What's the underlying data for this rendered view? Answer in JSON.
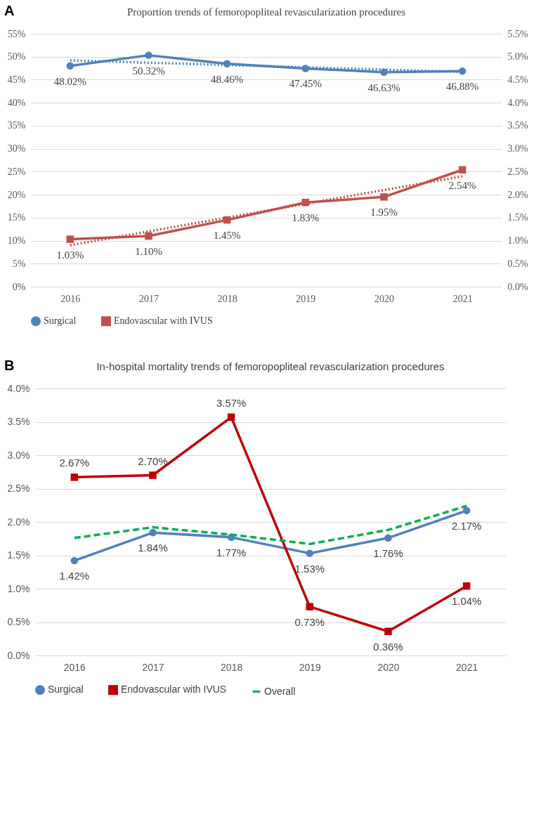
{
  "chart_data": [
    {
      "type": "line",
      "title": "Proportion trends of femoropopliteal revascularization procedures",
      "annotations": [
        "A"
      ],
      "categories": [
        "2016",
        "2017",
        "2018",
        "2019",
        "2020",
        "2021"
      ],
      "ylim": [
        0,
        55
      ],
      "yticks": [
        {
          "value": 0,
          "label": "0%"
        },
        {
          "value": 5,
          "label": "5%"
        },
        {
          "value": 10,
          "label": "10%"
        },
        {
          "value": 15,
          "label": "15%"
        },
        {
          "value": 20,
          "label": "20%"
        },
        {
          "value": 25,
          "label": "25%"
        },
        {
          "value": 30,
          "label": "30%"
        },
        {
          "value": 35,
          "label": "35%"
        },
        {
          "value": 40,
          "label": "40%"
        },
        {
          "value": 45,
          "label": "45%"
        },
        {
          "value": 50,
          "label": "50%"
        },
        {
          "value": 55,
          "label": "55%"
        }
      ],
      "y2lim": [
        0,
        5.5
      ],
      "y2ticks": [
        {
          "value": 0,
          "label": "0.0%"
        },
        {
          "value": 0.5,
          "label": "0.5%"
        },
        {
          "value": 1,
          "label": "1.0%"
        },
        {
          "value": 1.5,
          "label": "1.5%"
        },
        {
          "value": 2,
          "label": "2.0%"
        },
        {
          "value": 2.5,
          "label": "2.5%"
        },
        {
          "value": 3,
          "label": "3.0%"
        },
        {
          "value": 3.5,
          "label": "3.5%"
        },
        {
          "value": 4,
          "label": "4.0%"
        },
        {
          "value": 4.5,
          "label": "4.5%"
        },
        {
          "value": 5,
          "label": "5.0%"
        },
        {
          "value": 5.5,
          "label": "5.5%"
        }
      ],
      "grid": "y",
      "legend": "bottom",
      "series": [
        {
          "name": "Surgical",
          "color": "#4f81bd",
          "marker": "circle",
          "line_style": "solid",
          "values": [
            48.02,
            50.32,
            48.46,
            47.45,
            46.63,
            46.88
          ],
          "value_labels": [
            "48.02%",
            "50.32%",
            "48.46%",
            "47.45%",
            "46.63%",
            "46.88%"
          ]
        },
        {
          "name": "Endovascular with IVUS",
          "color": "#c0504d",
          "marker": "square",
          "line_style": "solid",
          "axis": "y2",
          "values": [
            1.03,
            1.1,
            1.45,
            1.83,
            1.95,
            2.54
          ],
          "value_labels": [
            "1.03%",
            "1.10%",
            "1.45%",
            "1.83%",
            "1.95%",
            "2.54%"
          ]
        },
        {
          "type": "line",
          "color": "#4f81bd",
          "marker": "none",
          "line_style": "dotted",
          "values": [
            49.2,
            48.7,
            48.2,
            47.7,
            47.2,
            46.7
          ]
        },
        {
          "type": "line",
          "color": "#c0504d",
          "marker": "none",
          "line_style": "dotted",
          "axis": "y2",
          "values": [
            0.9,
            1.2,
            1.5,
            1.8,
            2.1,
            2.4
          ]
        }
      ]
    },
    {
      "type": "line",
      "title": "In-hospital mortality trends of femoropopliteal revascularization procedures",
      "annotations": [
        "B"
      ],
      "categories": [
        "2016",
        "2017",
        "2018",
        "2019",
        "2020",
        "2021"
      ],
      "ylim": [
        0,
        4
      ],
      "yticks": [
        {
          "value": 0,
          "label": "0.0%"
        },
        {
          "value": 0.5,
          "label": "0.5%"
        },
        {
          "value": 1,
          "label": "1.0%"
        },
        {
          "value": 1.5,
          "label": "1.5%"
        },
        {
          "value": 2,
          "label": "2.0%"
        },
        {
          "value": 2.5,
          "label": "2.5%"
        },
        {
          "value": 3,
          "label": "3.0%"
        },
        {
          "value": 3.5,
          "label": "3.5%"
        },
        {
          "value": 4,
          "label": "4.0%"
        }
      ],
      "grid": "y",
      "legend": "bottom",
      "series": [
        {
          "name": "Surgical",
          "color": "#4f81bd",
          "marker": "circle",
          "line_style": "solid",
          "values": [
            1.42,
            1.84,
            1.77,
            1.53,
            1.76,
            2.17
          ],
          "value_labels": [
            "1.42%",
            "1.84%",
            "1.77%",
            "1.53%",
            "1.76%",
            "2.17%"
          ]
        },
        {
          "name": "Endovascular with IVUS",
          "color": "#c00000",
          "marker": "square",
          "line_style": "solid",
          "values": [
            2.67,
            2.7,
            3.57,
            0.73,
            0.36,
            1.04
          ],
          "value_labels": [
            "2.67%",
            "2.70%",
            "3.57%",
            "0.73%",
            "0.36%",
            "1.04%"
          ]
        },
        {
          "name": "Overall",
          "color": "#00b050",
          "marker": "none",
          "line_style": "dashed",
          "values": [
            1.76,
            1.92,
            1.81,
            1.67,
            1.88,
            2.24
          ]
        }
      ]
    }
  ]
}
